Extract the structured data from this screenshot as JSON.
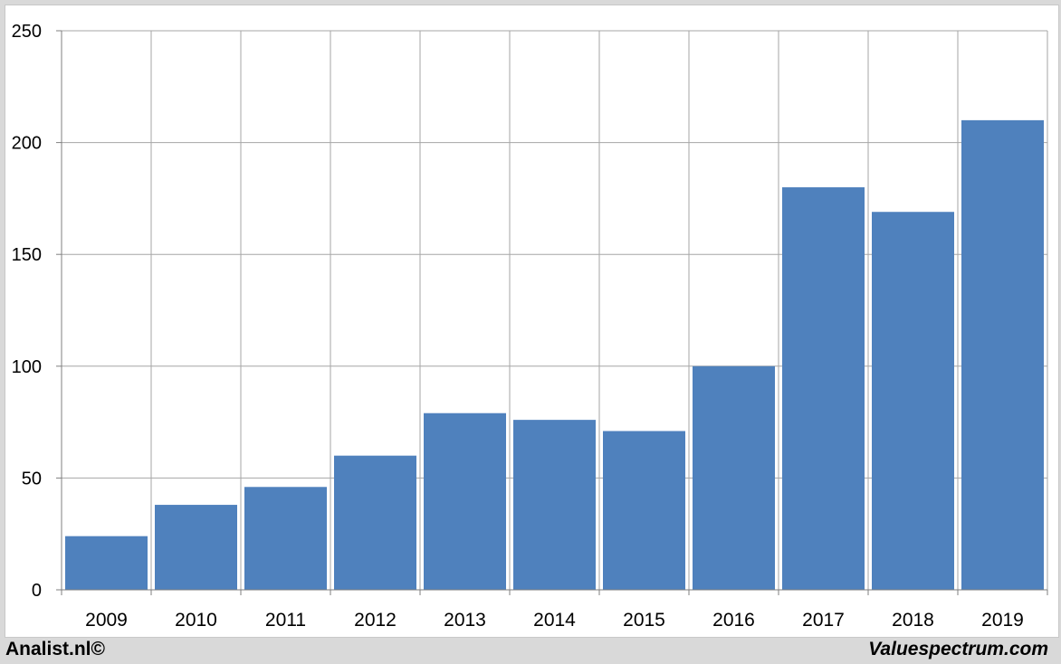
{
  "colors": {
    "bar": "#4f81bd",
    "grid": "#a6a6a6",
    "axis": "#7f7f7f",
    "frame_bg": "#ffffff",
    "page_bg": "#d9d9d9"
  },
  "footer": {
    "left_text": "Analist.nl©",
    "right_text": "Valuespectrum.com"
  },
  "chart_data": {
    "type": "bar",
    "categories": [
      "2009",
      "2010",
      "2011",
      "2012",
      "2013",
      "2014",
      "2015",
      "2016",
      "2017",
      "2018",
      "2019"
    ],
    "values": [
      24,
      38,
      46,
      60,
      79,
      76,
      71,
      100,
      180,
      169,
      210
    ],
    "ylim": [
      0,
      250
    ],
    "yticks": [
      0,
      50,
      100,
      150,
      200,
      250
    ],
    "grid": true,
    "legend": "none"
  }
}
